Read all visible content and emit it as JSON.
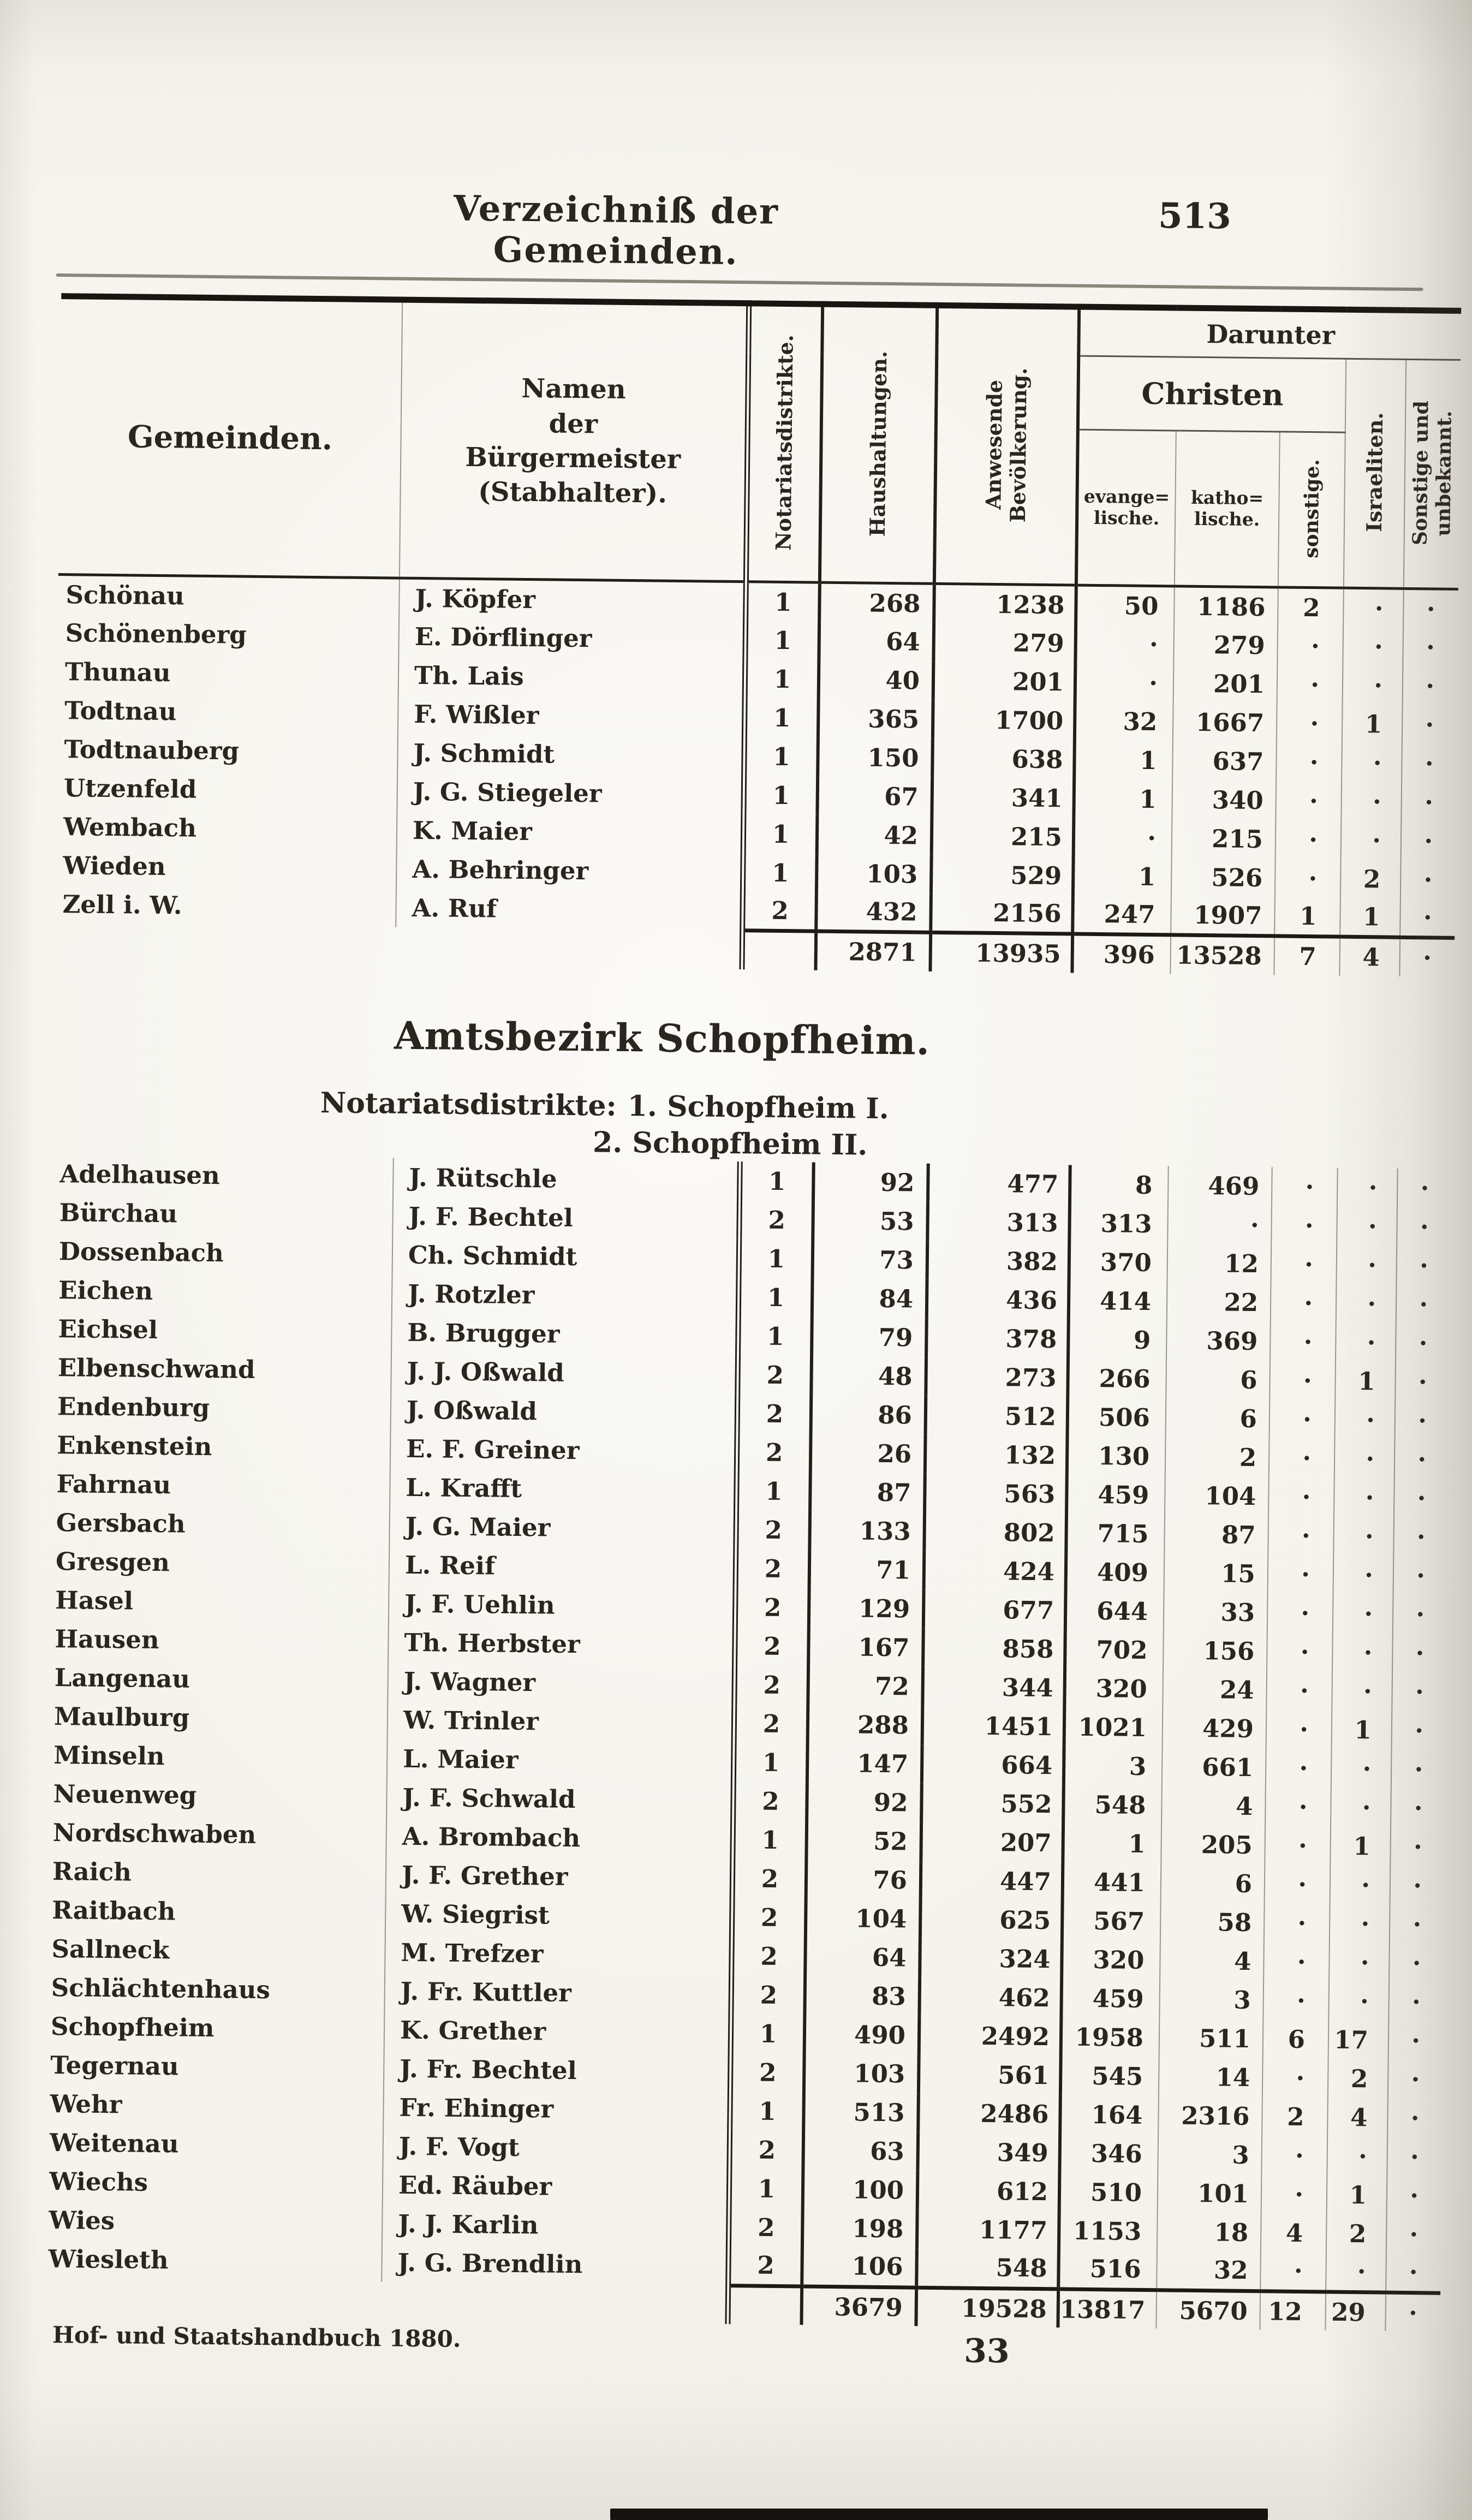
{
  "page": {
    "header_title": "Verzeichniß der Gemeinden.",
    "page_number": "513",
    "footer_left": "Hof- und Staatshandbuch 1880.",
    "signature_mark": "33"
  },
  "colors": {
    "ink": "#2a251e",
    "paper": "#f4f2ec",
    "rule_dark": "#221e18",
    "rule_light": "#9b968c"
  },
  "table": {
    "headers": {
      "gemeinden": "Gemeinden.",
      "mayor_lines": [
        "Namen",
        "der",
        "Bürgermeister",
        "(Stabhalter)."
      ],
      "notariat": "Notariatsdistrikte.",
      "haushaltungen": "Haushaltungen.",
      "bevoelkerung_lines": [
        "Anwesende",
        "Bevölkerung."
      ],
      "darunter": "Darunter",
      "christen": "Christen",
      "evangelische_lines": [
        "evange=",
        "lische."
      ],
      "katholische_lines": [
        "katho=",
        "lische."
      ],
      "sonstige": "sonstige.",
      "israeliten": "Israeliten.",
      "sonstige_unbekannt_lines": [
        "Sonstige und",
        "unbekannt."
      ]
    }
  },
  "sections": [
    {
      "rows": [
        {
          "name": "Schönau",
          "mayor": "J. Köpfer",
          "dist": "1",
          "hh": "268",
          "pop": "1238",
          "ev": "50",
          "kath": "1186",
          "sonst": "2",
          "isr": "·",
          "unbek": "·"
        },
        {
          "name": "Schönenberg",
          "mayor": "E. Dörflinger",
          "dist": "1",
          "hh": "64",
          "pop": "279",
          "ev": "·",
          "kath": "279",
          "sonst": "·",
          "isr": "·",
          "unbek": "·"
        },
        {
          "name": "Thunau",
          "mayor": "Th. Lais",
          "dist": "1",
          "hh": "40",
          "pop": "201",
          "ev": "·",
          "kath": "201",
          "sonst": "·",
          "isr": "·",
          "unbek": "·"
        },
        {
          "name": "Todtnau",
          "mayor": "F. Wißler",
          "dist": "1",
          "hh": "365",
          "pop": "1700",
          "ev": "32",
          "kath": "1667",
          "sonst": "·",
          "isr": "1",
          "unbek": "·"
        },
        {
          "name": "Todtnauberg",
          "mayor": "J. Schmidt",
          "dist": "1",
          "hh": "150",
          "pop": "638",
          "ev": "1",
          "kath": "637",
          "sonst": "·",
          "isr": "·",
          "unbek": "·"
        },
        {
          "name": "Utzenfeld",
          "mayor": "J. G. Stiegeler",
          "dist": "1",
          "hh": "67",
          "pop": "341",
          "ev": "1",
          "kath": "340",
          "sonst": "·",
          "isr": "·",
          "unbek": "·"
        },
        {
          "name": "Wembach",
          "mayor": "K. Maier",
          "dist": "1",
          "hh": "42",
          "pop": "215",
          "ev": "·",
          "kath": "215",
          "sonst": "·",
          "isr": "·",
          "unbek": "·"
        },
        {
          "name": "Wieden",
          "mayor": "A. Behringer",
          "dist": "1",
          "hh": "103",
          "pop": "529",
          "ev": "1",
          "kath": "526",
          "sonst": "·",
          "isr": "2",
          "unbek": "·"
        },
        {
          "name": "Zell i. W.",
          "mayor": "A. Ruf",
          "dist": "2",
          "hh": "432",
          "pop": "2156",
          "ev": "247",
          "kath": "1907",
          "sonst": "1",
          "isr": "1",
          "unbek": "·"
        }
      ],
      "totals": {
        "name": "",
        "mayor": "",
        "dist": "",
        "hh": "2871",
        "pop": "13935",
        "ev": "396",
        "kath": "13528",
        "sonst": "7",
        "isr": "4",
        "unbek": "·"
      }
    },
    {
      "heading": "Amtsbezirk Schopfheim.",
      "note_label": "Notariatsdistrikte:",
      "notes": [
        "1. Schopfheim I.",
        "2. Schopfheim II."
      ],
      "rows": [
        {
          "name": "Adelhausen",
          "mayor": "J. Rütschle",
          "dist": "1",
          "hh": "92",
          "pop": "477",
          "ev": "8",
          "kath": "469",
          "sonst": "·",
          "isr": "·",
          "unbek": "·"
        },
        {
          "name": "Bürchau",
          "mayor": "J. F. Bechtel",
          "dist": "2",
          "hh": "53",
          "pop": "313",
          "ev": "313",
          "kath": "·",
          "sonst": "·",
          "isr": "·",
          "unbek": "·"
        },
        {
          "name": "Dossenbach",
          "mayor": "Ch. Schmidt",
          "dist": "1",
          "hh": "73",
          "pop": "382",
          "ev": "370",
          "kath": "12",
          "sonst": "·",
          "isr": "·",
          "unbek": "·"
        },
        {
          "name": "Eichen",
          "mayor": "J. Rotzler",
          "dist": "1",
          "hh": "84",
          "pop": "436",
          "ev": "414",
          "kath": "22",
          "sonst": "·",
          "isr": "·",
          "unbek": "·"
        },
        {
          "name": "Eichsel",
          "mayor": "B. Brugger",
          "dist": "1",
          "hh": "79",
          "pop": "378",
          "ev": "9",
          "kath": "369",
          "sonst": "·",
          "isr": "·",
          "unbek": "·"
        },
        {
          "name": "Elbenschwand",
          "mayor": "J. J. Oßwald",
          "dist": "2",
          "hh": "48",
          "pop": "273",
          "ev": "266",
          "kath": "6",
          "sonst": "·",
          "isr": "1",
          "unbek": "·"
        },
        {
          "name": "Endenburg",
          "mayor": "J. Oßwald",
          "dist": "2",
          "hh": "86",
          "pop": "512",
          "ev": "506",
          "kath": "6",
          "sonst": "·",
          "isr": "·",
          "unbek": "·"
        },
        {
          "name": "Enkenstein",
          "mayor": "E. F. Greiner",
          "dist": "2",
          "hh": "26",
          "pop": "132",
          "ev": "130",
          "kath": "2",
          "sonst": "·",
          "isr": "·",
          "unbek": "·"
        },
        {
          "name": "Fahrnau",
          "mayor": "L. Krafft",
          "dist": "1",
          "hh": "87",
          "pop": "563",
          "ev": "459",
          "kath": "104",
          "sonst": "·",
          "isr": "·",
          "unbek": "·"
        },
        {
          "name": "Gersbach",
          "mayor": "J. G. Maier",
          "dist": "2",
          "hh": "133",
          "pop": "802",
          "ev": "715",
          "kath": "87",
          "sonst": "·",
          "isr": "·",
          "unbek": "·"
        },
        {
          "name": "Gresgen",
          "mayor": "L. Reif",
          "dist": "2",
          "hh": "71",
          "pop": "424",
          "ev": "409",
          "kath": "15",
          "sonst": "·",
          "isr": "·",
          "unbek": "·"
        },
        {
          "name": "Hasel",
          "mayor": "J. F. Uehlin",
          "dist": "2",
          "hh": "129",
          "pop": "677",
          "ev": "644",
          "kath": "33",
          "sonst": "·",
          "isr": "·",
          "unbek": "·"
        },
        {
          "name": "Hausen",
          "mayor": "Th. Herbster",
          "dist": "2",
          "hh": "167",
          "pop": "858",
          "ev": "702",
          "kath": "156",
          "sonst": "·",
          "isr": "·",
          "unbek": "·"
        },
        {
          "name": "Langenau",
          "mayor": "J. Wagner",
          "dist": "2",
          "hh": "72",
          "pop": "344",
          "ev": "320",
          "kath": "24",
          "sonst": "·",
          "isr": "·",
          "unbek": "·"
        },
        {
          "name": "Maulburg",
          "mayor": "W. Trinler",
          "dist": "2",
          "hh": "288",
          "pop": "1451",
          "ev": "1021",
          "kath": "429",
          "sonst": "·",
          "isr": "1",
          "unbek": "·"
        },
        {
          "name": "Minseln",
          "mayor": "L. Maier",
          "dist": "1",
          "hh": "147",
          "pop": "664",
          "ev": "3",
          "kath": "661",
          "sonst": "·",
          "isr": "·",
          "unbek": "·"
        },
        {
          "name": "Neuenweg",
          "mayor": "J. F. Schwald",
          "dist": "2",
          "hh": "92",
          "pop": "552",
          "ev": "548",
          "kath": "4",
          "sonst": "·",
          "isr": "·",
          "unbek": "·"
        },
        {
          "name": "Nordschwaben",
          "mayor": "A. Brombach",
          "dist": "1",
          "hh": "52",
          "pop": "207",
          "ev": "1",
          "kath": "205",
          "sonst": "·",
          "isr": "1",
          "unbek": "·"
        },
        {
          "name": "Raich",
          "mayor": "J. F. Grether",
          "dist": "2",
          "hh": "76",
          "pop": "447",
          "ev": "441",
          "kath": "6",
          "sonst": "·",
          "isr": "·",
          "unbek": "·"
        },
        {
          "name": "Raitbach",
          "mayor": "W. Siegrist",
          "dist": "2",
          "hh": "104",
          "pop": "625",
          "ev": "567",
          "kath": "58",
          "sonst": "·",
          "isr": "·",
          "unbek": "·"
        },
        {
          "name": "Sallneck",
          "mayor": "M. Trefzer",
          "dist": "2",
          "hh": "64",
          "pop": "324",
          "ev": "320",
          "kath": "4",
          "sonst": "·",
          "isr": "·",
          "unbek": "·"
        },
        {
          "name": "Schlächtenhaus",
          "mayor": "J. Fr. Kuttler",
          "dist": "2",
          "hh": "83",
          "pop": "462",
          "ev": "459",
          "kath": "3",
          "sonst": "·",
          "isr": "·",
          "unbek": "·"
        },
        {
          "name": "Schopfheim",
          "mayor": "K. Grether",
          "dist": "1",
          "hh": "490",
          "pop": "2492",
          "ev": "1958",
          "kath": "511",
          "sonst": "6",
          "isr": "17",
          "unbek": "·"
        },
        {
          "name": "Tegernau",
          "mayor": "J. Fr. Bechtel",
          "dist": "2",
          "hh": "103",
          "pop": "561",
          "ev": "545",
          "kath": "14",
          "sonst": "·",
          "isr": "2",
          "unbek": "·"
        },
        {
          "name": "Wehr",
          "mayor": "Fr. Ehinger",
          "dist": "1",
          "hh": "513",
          "pop": "2486",
          "ev": "164",
          "kath": "2316",
          "sonst": "2",
          "isr": "4",
          "unbek": "·"
        },
        {
          "name": "Weitenau",
          "mayor": "J. F. Vogt",
          "dist": "2",
          "hh": "63",
          "pop": "349",
          "ev": "346",
          "kath": "3",
          "sonst": "·",
          "isr": "·",
          "unbek": "·"
        },
        {
          "name": "Wiechs",
          "mayor": "Ed. Räuber",
          "dist": "1",
          "hh": "100",
          "pop": "612",
          "ev": "510",
          "kath": "101",
          "sonst": "·",
          "isr": "1",
          "unbek": "·"
        },
        {
          "name": "Wies",
          "mayor": "J. J. Karlin",
          "dist": "2",
          "hh": "198",
          "pop": "1177",
          "ev": "1153",
          "kath": "18",
          "sonst": "4",
          "isr": "2",
          "unbek": "·"
        },
        {
          "name": "Wiesleth",
          "mayor": "J. G. Brendlin",
          "dist": "2",
          "hh": "106",
          "pop": "548",
          "ev": "516",
          "kath": "32",
          "sonst": "·",
          "isr": "·",
          "unbek": "·"
        }
      ],
      "totals": {
        "name": "",
        "mayor": "",
        "dist": "",
        "hh": "3679",
        "pop": "19528",
        "ev": "13817",
        "kath": "5670",
        "sonst": "12",
        "isr": "29",
        "unbek": "·"
      }
    }
  ]
}
